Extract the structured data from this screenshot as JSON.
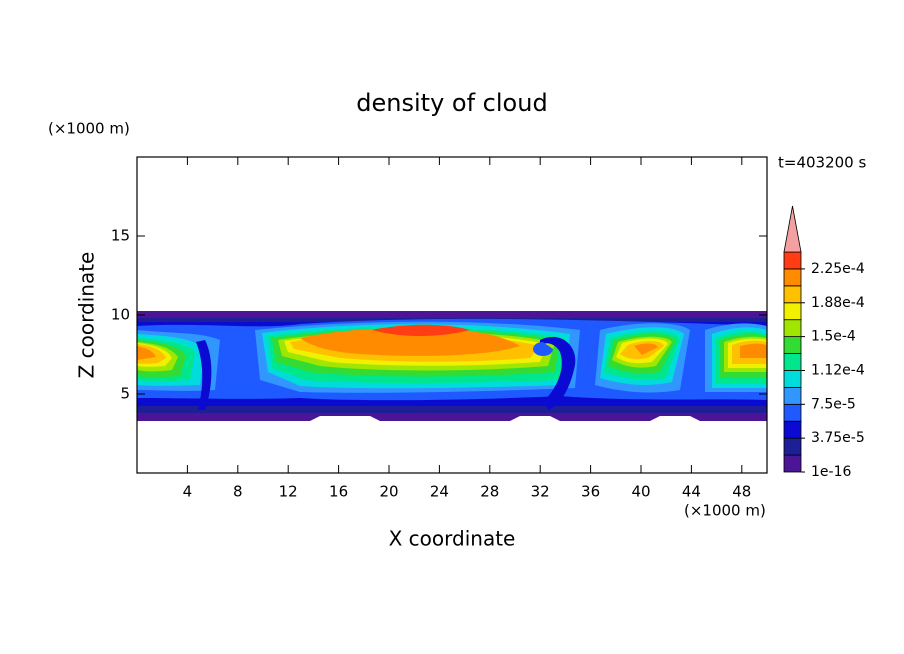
{
  "chart_data": {
    "type": "contour",
    "title": "density of cloud",
    "time_label": "t=403200 s",
    "x_label": "X coordinate",
    "y_label": "Z coordinate",
    "x_unit": "(×1000 m)",
    "y_unit": "(×1000 m)",
    "xlim": [
      0,
      50
    ],
    "ylim": [
      0,
      20
    ],
    "xticks": [
      4,
      8,
      12,
      16,
      20,
      24,
      28,
      32,
      36,
      40,
      44,
      48
    ],
    "yticks": [
      5,
      10,
      15
    ],
    "clim": [
      0,
      0.00024375
    ],
    "level_colors": [
      "#4c1496",
      "#1e1e96",
      "#0a0ad2",
      "#1e5aff",
      "#3296ff",
      "#00dcdc",
      "#00e68c",
      "#32dc32",
      "#a0e600",
      "#f0f000",
      "#ffc000",
      "#ff8c00",
      "#ff3c14"
    ],
    "extend_color": "#f4a0a0",
    "cticks": [
      1e-16,
      {
        "value": 3.75e-05,
        "label": "3.75e-5"
      },
      {
        "value": 7.5e-05,
        "label": "7.5e-5"
      },
      {
        "value": 0.0001125,
        "label": "1.12e-4"
      },
      {
        "value": 0.00015,
        "label": "1.5e-4"
      },
      {
        "value": 0.0001875,
        "label": "1.88e-4"
      },
      {
        "value": 0.000225,
        "label": "2.25e-4"
      }
    ]
  }
}
